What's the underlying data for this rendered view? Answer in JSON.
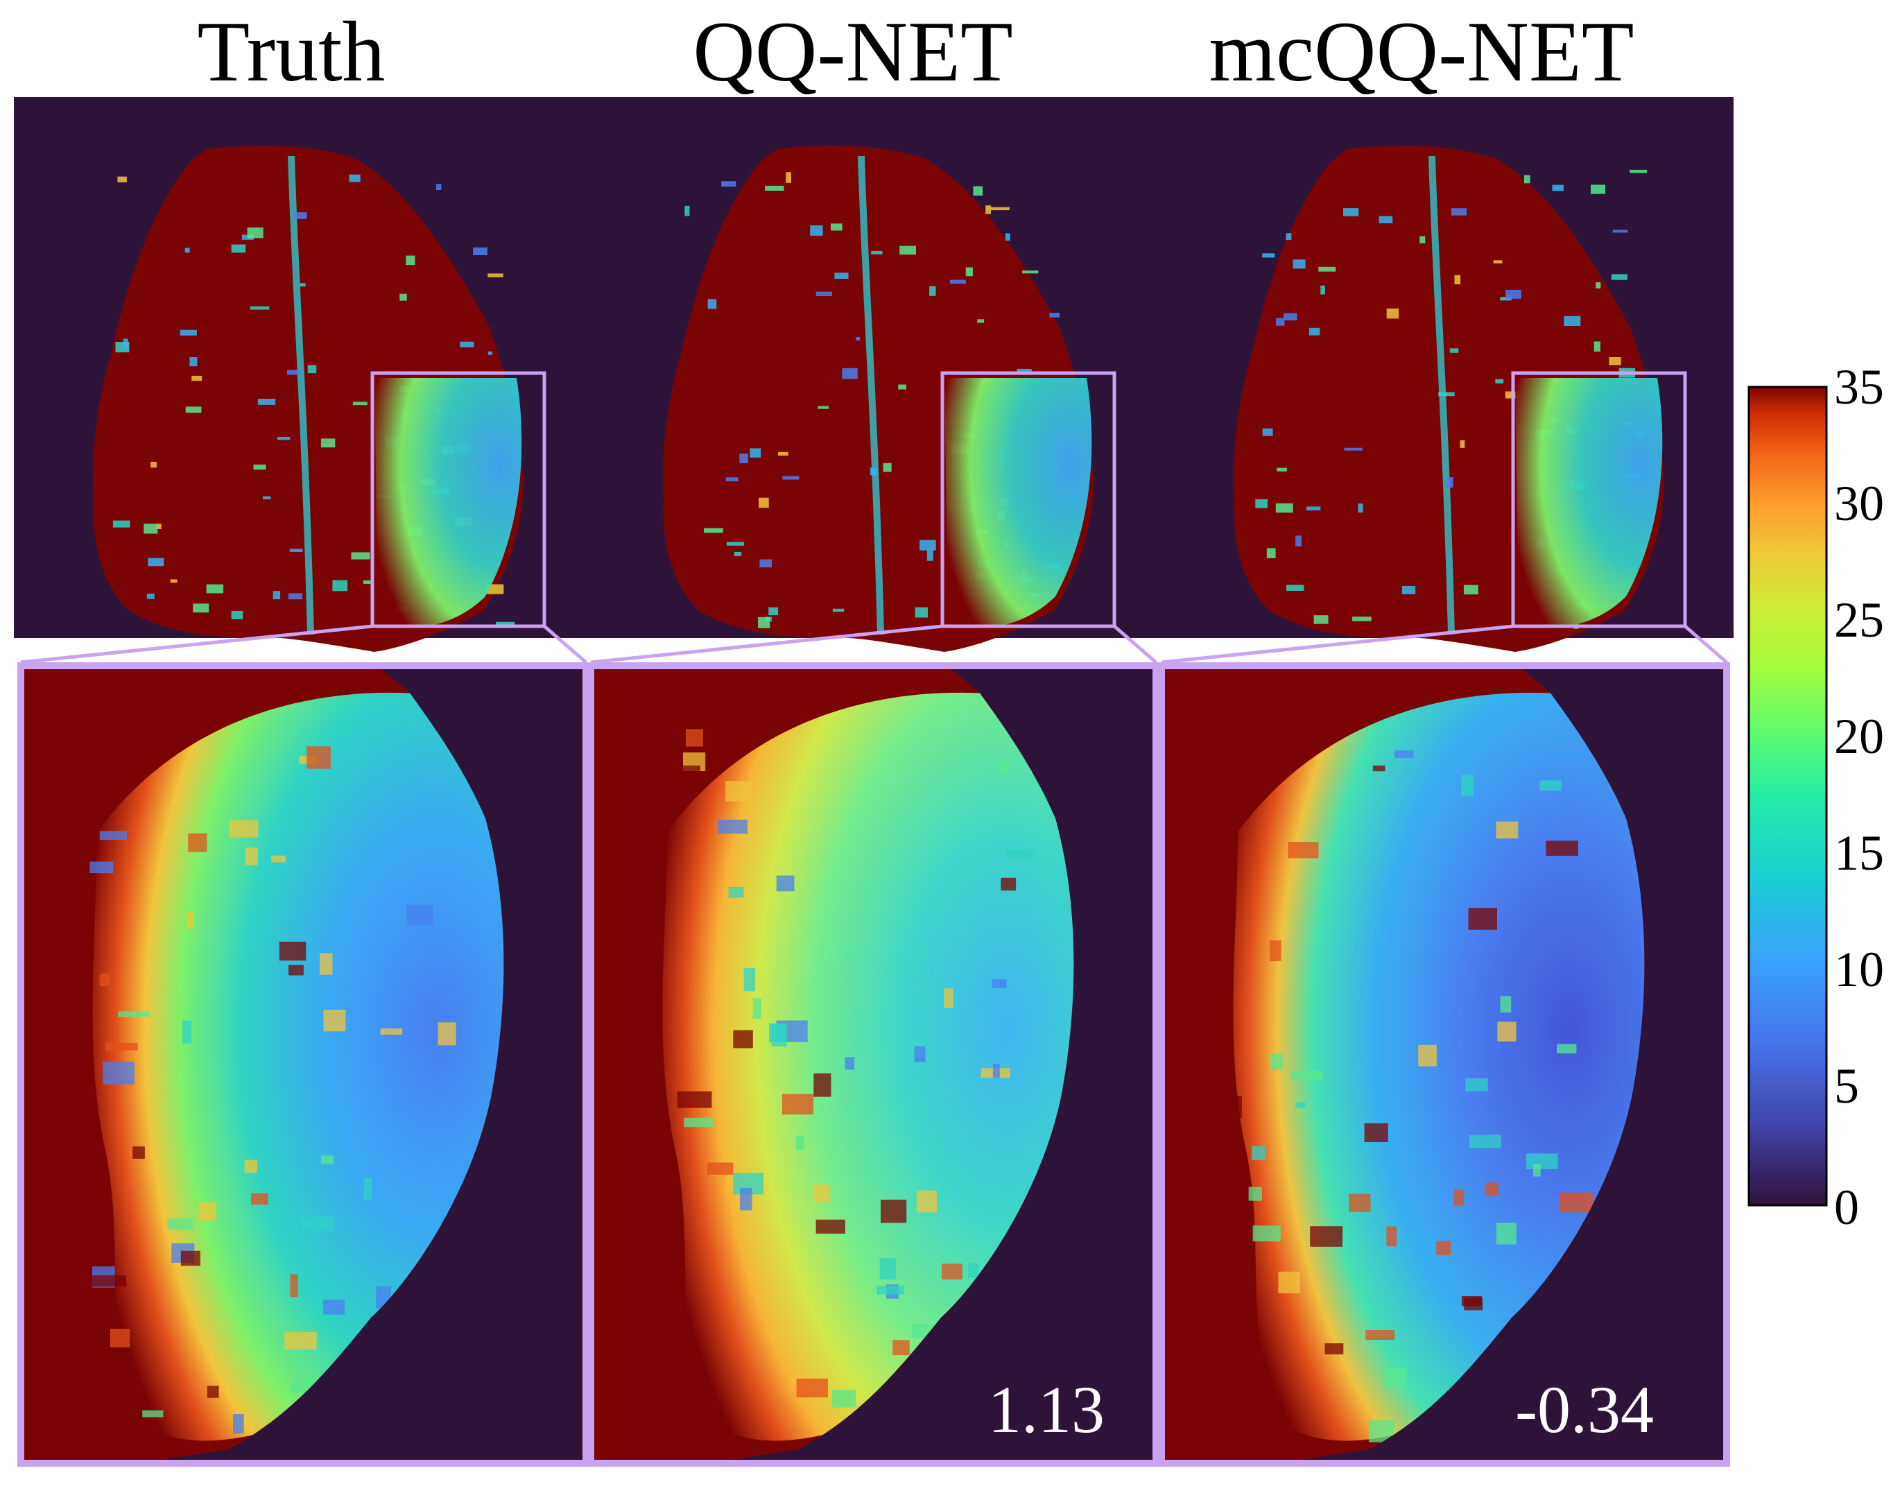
{
  "columns": [
    {
      "title": "Truth",
      "score": ""
    },
    {
      "title": "QQ-NET",
      "score": "1.13"
    },
    {
      "title": "mcQQ-NET",
      "score": "-0.34"
    }
  ],
  "colorbar": {
    "colormap": "jet",
    "min": 0,
    "max": 35,
    "ticks": [
      "35",
      "30",
      "25",
      "20",
      "15",
      "10",
      "5",
      "0"
    ]
  },
  "colors": {
    "background": "#2e1339",
    "zoom_frame": "#c9a2f2"
  }
}
